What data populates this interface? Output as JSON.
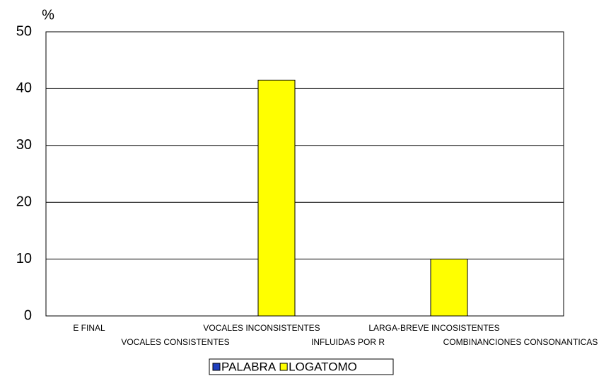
{
  "chart_data": {
    "type": "bar",
    "y_label": "%",
    "categories": [
      "E FINAL",
      "VOCALES CONSISTENTES",
      "VOCALES INCONSISTENTES",
      "INFLUIDAS POR R",
      "LARGA-BREVE INCOSISTENTES",
      "COMBINANCIONES CONSONANTICAS"
    ],
    "series": [
      {
        "name": "PALABRA",
        "color": "#1f3fbf",
        "values": [
          0,
          0,
          0,
          0,
          0,
          0
        ]
      },
      {
        "name": "LOGATOMO",
        "color": "#ffff00",
        "values": [
          0,
          0,
          41.5,
          0,
          10,
          0
        ]
      }
    ],
    "ylim": [
      0,
      50
    ],
    "yticks": [
      0,
      10,
      20,
      30,
      40,
      50
    ],
    "grid": true,
    "legend": "bottom"
  }
}
